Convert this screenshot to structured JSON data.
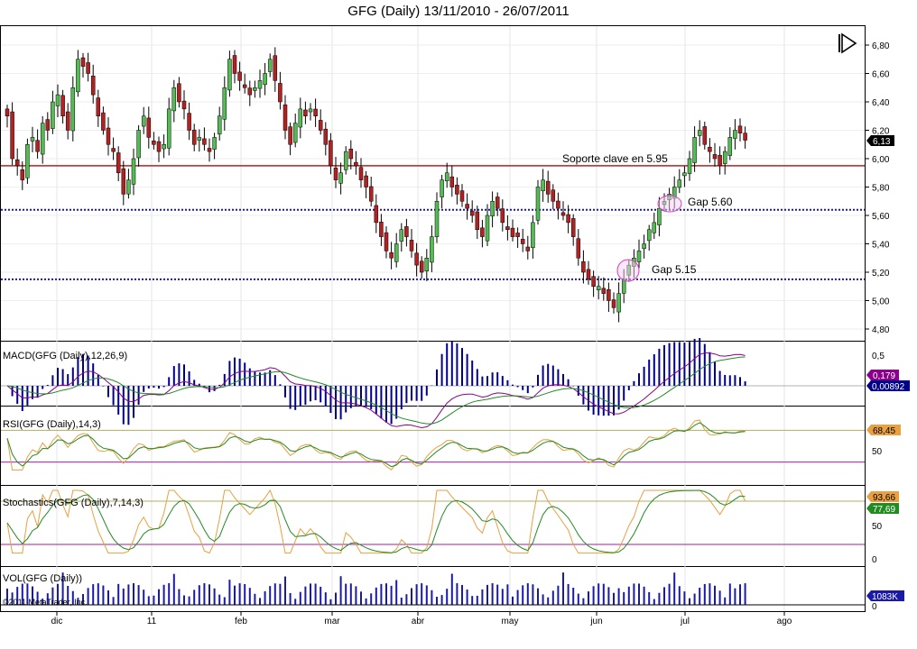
{
  "title": "GFG (Daily)  13/11/2010 - 26/07/2011",
  "copyright": "©2011 MetaTrader, Inc.",
  "chart_data": {
    "type": "candlestick",
    "symbol": "GFG",
    "x_labels": [
      "dic",
      "11",
      "feb",
      "mar",
      "abr",
      "may",
      "jun",
      "jul",
      "ago"
    ],
    "price": {
      "ylim": [
        4.7,
        6.9
      ],
      "ticks": [
        "6,80",
        "6,60",
        "6,40",
        "6,20",
        "6,00",
        "5,80",
        "5,60",
        "5,40",
        "5,20",
        "5,00",
        "4,80"
      ],
      "last_value": "6,13",
      "closes": [
        6.3,
        6.0,
        5.95,
        5.85,
        6.1,
        6.15,
        6.05,
        6.25,
        6.2,
        6.4,
        6.45,
        6.3,
        6.2,
        6.5,
        6.7,
        6.65,
        6.6,
        6.45,
        6.3,
        6.2,
        6.1,
        6.05,
        5.9,
        5.75,
        5.85,
        6.0,
        6.2,
        6.3,
        6.15,
        6.1,
        6.05,
        6.1,
        6.35,
        6.5,
        6.4,
        6.35,
        6.2,
        6.1,
        6.15,
        6.1,
        6.05,
        6.15,
        6.3,
        6.5,
        6.7,
        6.6,
        6.55,
        6.5,
        6.45,
        6.5,
        6.55,
        6.6,
        6.7,
        6.55,
        6.4,
        6.2,
        6.1,
        6.25,
        6.35,
        6.3,
        6.35,
        6.3,
        6.2,
        6.1,
        5.95,
        5.85,
        5.9,
        6.05,
        6.0,
        5.95,
        5.85,
        5.8,
        5.7,
        5.55,
        5.45,
        5.35,
        5.3,
        5.4,
        5.5,
        5.45,
        5.35,
        5.25,
        5.2,
        5.3,
        5.45,
        5.7,
        5.85,
        5.9,
        5.8,
        5.75,
        5.7,
        5.65,
        5.6,
        5.5,
        5.45,
        5.6,
        5.7,
        5.65,
        5.55,
        5.5,
        5.45,
        5.45,
        5.4,
        5.35,
        5.55,
        5.8,
        5.85,
        5.75,
        5.7,
        5.65,
        5.6,
        5.55,
        5.45,
        5.3,
        5.2,
        5.15,
        5.1,
        5.1,
        5.05,
        5.0,
        4.95,
        5.05,
        5.15,
        5.25,
        5.3,
        5.35,
        5.4,
        5.5,
        5.55,
        5.65,
        5.7,
        5.75,
        5.8,
        5.85,
        5.9,
        6.0,
        6.15,
        6.2,
        6.1,
        6.05,
        6.0,
        5.95,
        6.05,
        6.15,
        6.2,
        6.18,
        6.13
      ],
      "levels": [
        {
          "value": 5.95,
          "label": "Soporte clave en 5.95",
          "color": "#b22222"
        },
        {
          "value": 5.64,
          "label": "",
          "color": "#1a1aa6"
        },
        {
          "value": 5.15,
          "label": "",
          "color": "#1a1aa6"
        }
      ],
      "gaps": [
        {
          "label": "Gap 5.60",
          "price": 5.68
        },
        {
          "label": "Gap 5.15",
          "price": 5.22
        }
      ]
    },
    "macd": {
      "label": "MACD(GFG (Daily),12,26,9)",
      "ticks": [
        "0,5"
      ],
      "values": [
        "0,179",
        "0,00892"
      ],
      "colors": [
        "#8b008b",
        "#00008b"
      ]
    },
    "rsi": {
      "label": "RSI(GFG (Daily),14,3)",
      "ticks": [
        "50"
      ],
      "value": "68,45",
      "color": "#e8a040"
    },
    "stochastics": {
      "label": "Stochastics(GFG (Daily),7,14,3)",
      "ticks": [
        "50",
        "0"
      ],
      "values": [
        "93,66",
        "77,69"
      ],
      "colors": [
        "#e8a040",
        "#228b22"
      ]
    },
    "volume": {
      "label": "VOL(GFG (Daily))",
      "ticks": [
        "0"
      ],
      "value": "1083K",
      "color": "#1a1aa6"
    }
  }
}
